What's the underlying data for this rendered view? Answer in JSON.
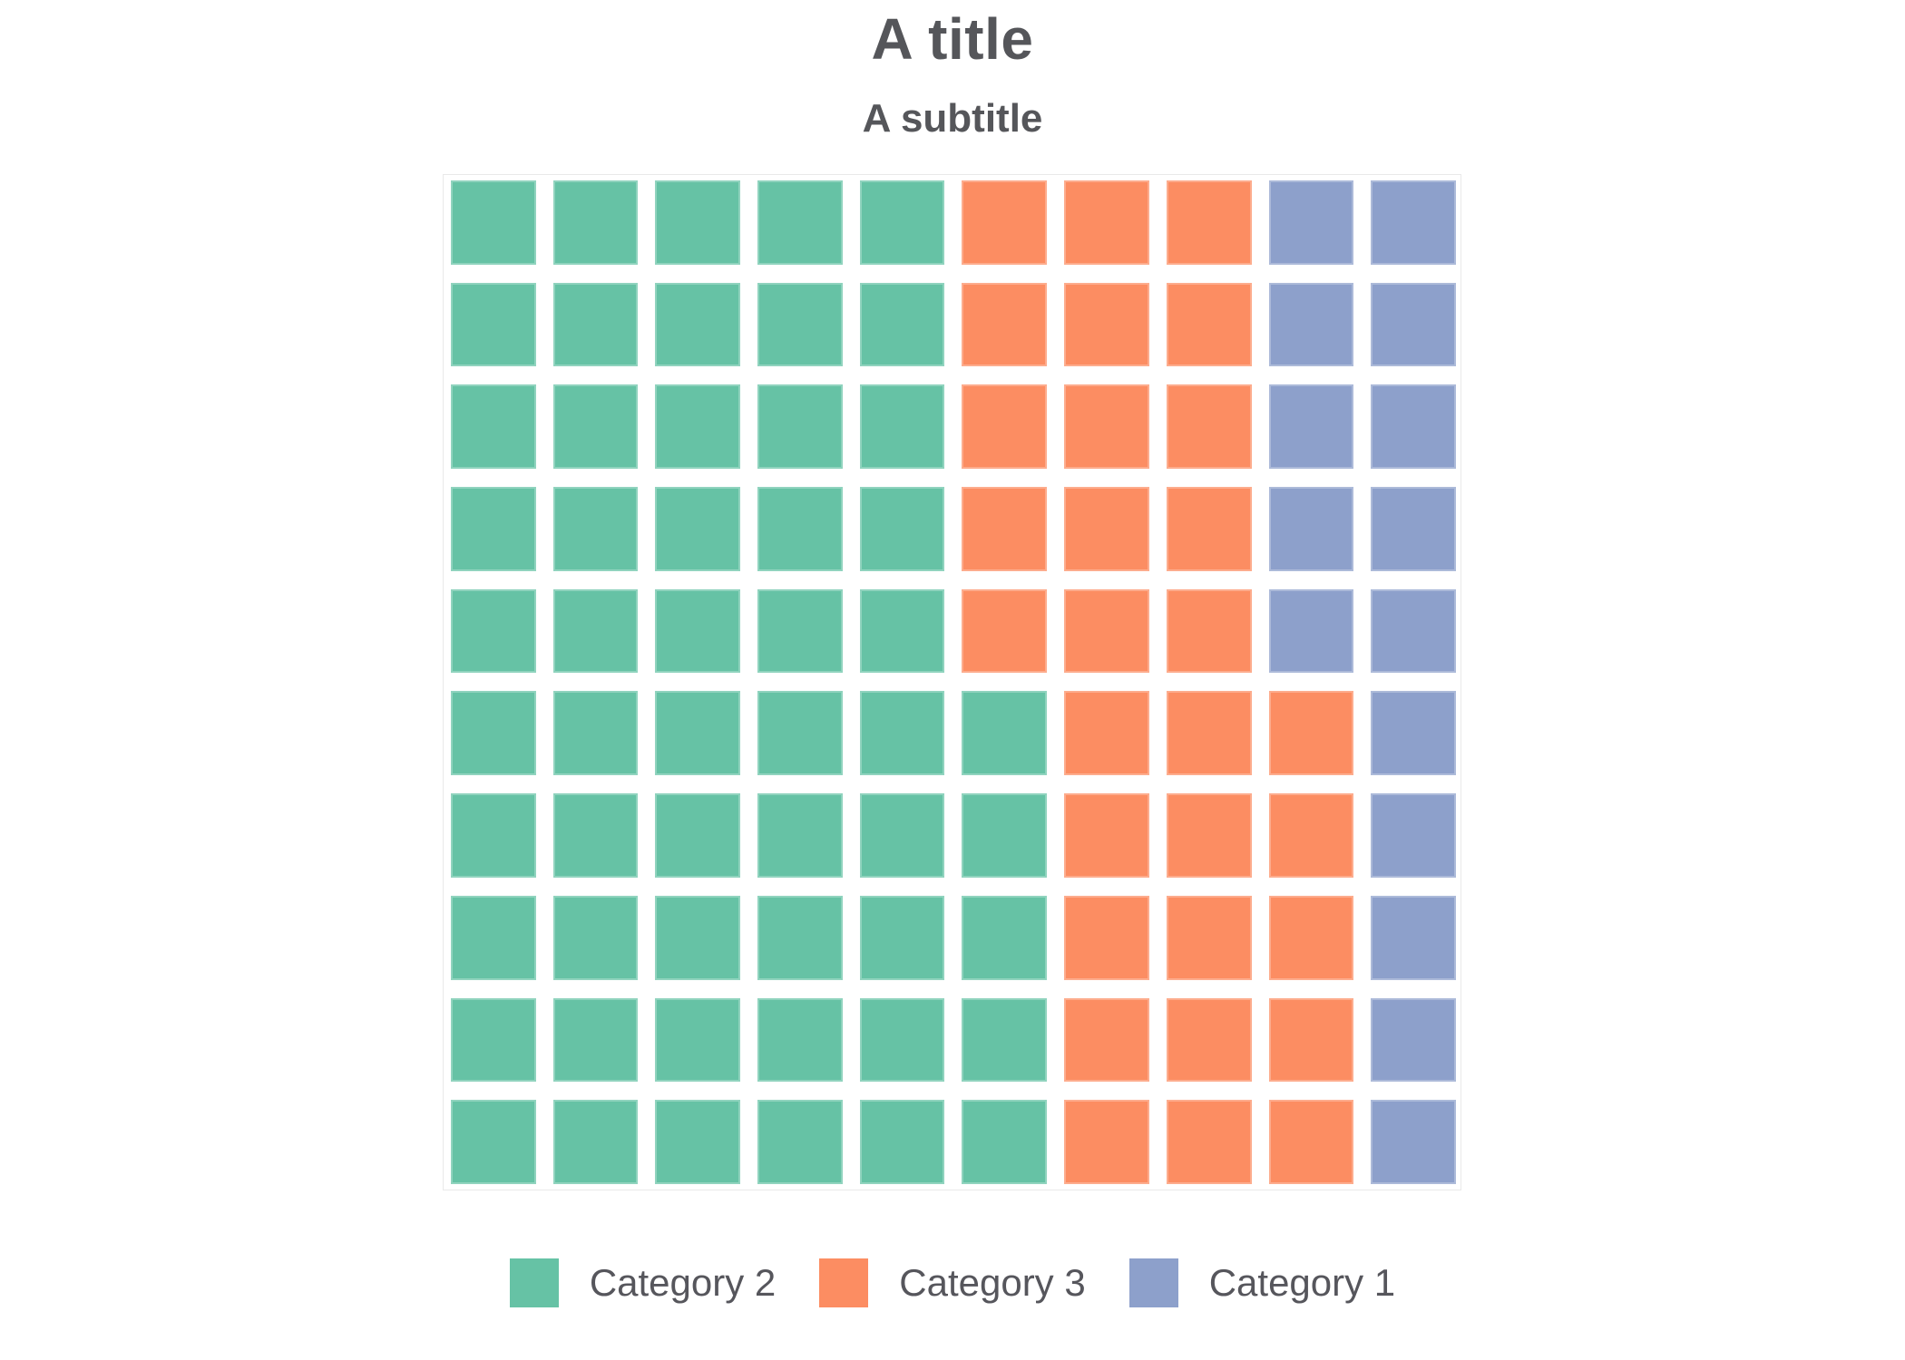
{
  "header": {
    "title": "A title",
    "subtitle": "A subtitle"
  },
  "colors": {
    "background": "#ffffff",
    "title_text": "#55565a",
    "legend_text": "#56565c",
    "plot_border": "#e9e9e9",
    "category_2": "#66c2a5",
    "category_3": "#fc8d62",
    "category_1": "#8da0cb"
  },
  "chart_data": {
    "type": "waffle",
    "title": "A title",
    "subtitle": "A subtitle",
    "grid": {
      "rows": 10,
      "cols": 10,
      "total_cells": 100
    },
    "fill_direction": "column-wise-from-bottom-left",
    "series": [
      {
        "name": "Category 2",
        "value": 55,
        "color": "#66c2a5"
      },
      {
        "name": "Category 3",
        "value": 30,
        "color": "#fc8d62"
      },
      {
        "name": "Category 1",
        "value": 15,
        "color": "#8da0cb"
      }
    ],
    "legend_position": "bottom-center",
    "legend_order": [
      "Category 2",
      "Category 3",
      "Category 1"
    ],
    "cells_by_row": [
      [
        0,
        0,
        0,
        0,
        0,
        1,
        1,
        1,
        2,
        2
      ],
      [
        0,
        0,
        0,
        0,
        0,
        1,
        1,
        1,
        2,
        2
      ],
      [
        0,
        0,
        0,
        0,
        0,
        1,
        1,
        1,
        2,
        2
      ],
      [
        0,
        0,
        0,
        0,
        0,
        1,
        1,
        1,
        2,
        2
      ],
      [
        0,
        0,
        0,
        0,
        0,
        1,
        1,
        1,
        2,
        2
      ],
      [
        0,
        0,
        0,
        0,
        0,
        0,
        1,
        1,
        1,
        2
      ],
      [
        0,
        0,
        0,
        0,
        0,
        0,
        1,
        1,
        1,
        2
      ],
      [
        0,
        0,
        0,
        0,
        0,
        0,
        1,
        1,
        1,
        2
      ],
      [
        0,
        0,
        0,
        0,
        0,
        0,
        1,
        1,
        1,
        2
      ],
      [
        0,
        0,
        0,
        0,
        0,
        0,
        1,
        1,
        1,
        2
      ]
    ]
  }
}
